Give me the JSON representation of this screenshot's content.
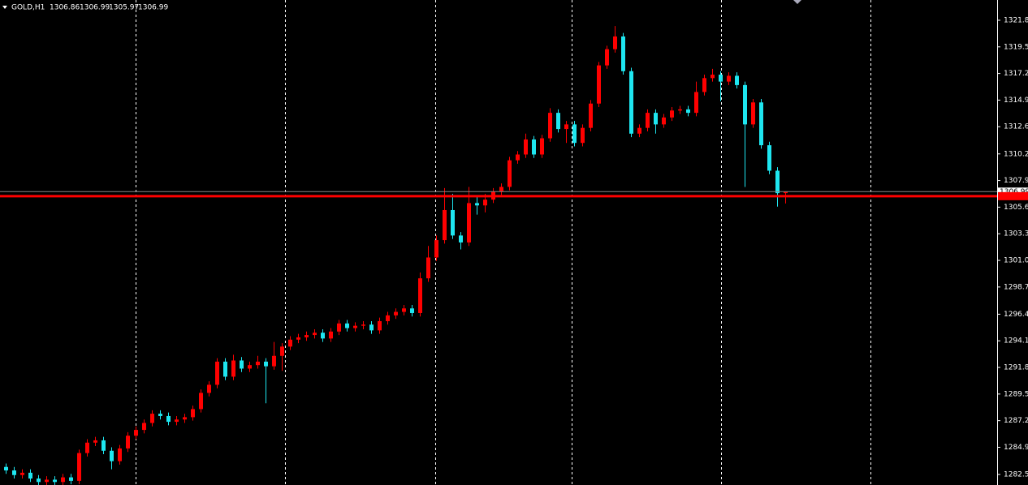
{
  "chart_data": {
    "type": "candlestick",
    "title": "GOLD,H1",
    "up_color": "#ff0000",
    "down_color": "#1ee6f0",
    "ylim": [
      1281.64,
      1323.55
    ],
    "yticks": [
      {
        "value": 1321.8,
        "label": "1321.80"
      },
      {
        "value": 1319.5,
        "label": "1319.50"
      },
      {
        "value": 1317.2,
        "label": "1317.20"
      },
      {
        "value": 1314.9,
        "label": "1314.90"
      },
      {
        "value": 1312.6,
        "label": "1312.60"
      },
      1310.25,
      1307.95,
      1305.65,
      1303.35,
      {
        "value": 1301.05,
        "label": "1301.05"
      },
      1298.75,
      {
        "value": 1296.4,
        "label": "1296.40"
      },
      {
        "value": 1294.1,
        "label": "1294.10"
      },
      {
        "value": 1291.8,
        "label": "1291.80"
      },
      {
        "value": 1289.5,
        "label": "1289.50"
      },
      {
        "value": 1287.2,
        "label": "1287.20"
      },
      {
        "value": 1284.9,
        "label": "1284.90"
      },
      1282.55
    ],
    "hline": 1306.6,
    "hline_color": "#ff0000",
    "open": [
      1283.2,
      1282.9,
      1282.5,
      1282.7,
      1282.2,
      1281.9,
      1282.1,
      1281.9,
      1282.3,
      1282.0,
      1284.4,
      1285.3,
      1285.5,
      1284.6,
      1283.7,
      1284.8,
      1285.9,
      1286.4,
      1287.0,
      1287.8,
      1287.6,
      1287.1,
      1287.3,
      1287.5,
      1288.2,
      1289.6,
      1290.3,
      1292.3,
      1291.0,
      1292.4,
      1291.7,
      1292.0,
      1292.3,
      1291.9,
      1292.8,
      1293.6,
      1294.2,
      1294.4,
      1294.6,
      1294.8,
      1294.3,
      1294.9,
      1295.6,
      1295.2,
      1295.4,
      1295.5,
      1295.0,
      1295.8,
      1296.3,
      1296.6,
      1296.9,
      1296.5,
      1299.5,
      1301.3,
      1302.8,
      1305.4,
      1303.2,
      1302.6,
      1306.0,
      1305.8,
      1306.3,
      1307.0,
      1307.4,
      1309.7,
      1310.2,
      1311.5,
      1310.2,
      1311.6,
      1313.8,
      1312.4,
      1312.8,
      1311.2,
      1312.5,
      1314.6,
      1317.9,
      1319.3,
      1320.4,
      1317.4,
      1312.0,
      1312.5,
      1313.8,
      1312.8,
      1313.4,
      1314.0,
      1314.1,
      1313.8,
      1315.6,
      1316.8,
      1317.1,
      1316.5,
      1317.0,
      1316.2,
      1312.8,
      1314.7,
      1311.0,
      1308.8,
      1306.86
    ],
    "high": [
      1283.5,
      1283.2,
      1283.0,
      1283.0,
      1282.5,
      1282.4,
      1282.4,
      1282.6,
      1282.6,
      1284.7,
      1285.6,
      1285.8,
      1285.8,
      1284.9,
      1285.1,
      1286.2,
      1286.7,
      1287.3,
      1288.1,
      1288.1,
      1287.9,
      1287.6,
      1287.8,
      1288.5,
      1289.9,
      1290.6,
      1292.6,
      1292.6,
      1292.9,
      1292.7,
      1292.3,
      1292.8,
      1292.6,
      1294.0,
      1293.9,
      1294.5,
      1294.7,
      1294.9,
      1295.1,
      1295.1,
      1295.2,
      1295.9,
      1295.9,
      1295.7,
      1295.8,
      1295.8,
      1296.1,
      1296.6,
      1296.9,
      1297.2,
      1297.2,
      1300.0,
      1302.3,
      1303.2,
      1307.3,
      1306.8,
      1303.5,
      1307.4,
      1306.6,
      1306.8,
      1307.3,
      1307.7,
      1310.0,
      1310.5,
      1312.0,
      1311.8,
      1311.9,
      1314.2,
      1314.1,
      1313.1,
      1313.1,
      1312.8,
      1314.9,
      1318.2,
      1319.6,
      1321.3,
      1320.7,
      1317.7,
      1312.8,
      1314.1,
      1314.1,
      1313.7,
      1314.3,
      1314.4,
      1314.4,
      1316.5,
      1317.1,
      1317.6,
      1317.4,
      1317.3,
      1317.3,
      1316.5,
      1315.0,
      1315.0,
      1311.3,
      1309.1,
      1306.99
    ],
    "low": [
      1282.6,
      1282.2,
      1282.2,
      1281.9,
      1281.6,
      1281.6,
      1281.6,
      1281.6,
      1281.7,
      1281.7,
      1284.1,
      1285.0,
      1284.3,
      1283.0,
      1283.4,
      1284.5,
      1285.6,
      1286.1,
      1286.7,
      1287.3,
      1286.8,
      1286.8,
      1287.0,
      1287.2,
      1287.9,
      1289.3,
      1290.0,
      1290.7,
      1290.7,
      1291.4,
      1291.4,
      1291.7,
      1288.7,
      1291.6,
      1291.5,
      1293.3,
      1293.9,
      1294.1,
      1294.3,
      1294.0,
      1294.0,
      1294.6,
      1294.9,
      1294.9,
      1295.1,
      1294.7,
      1294.7,
      1295.5,
      1296.0,
      1296.3,
      1296.2,
      1296.2,
      1299.2,
      1301.0,
      1302.5,
      1302.9,
      1302.0,
      1302.3,
      1305.0,
      1305.2,
      1306.0,
      1306.7,
      1307.1,
      1309.4,
      1309.9,
      1309.9,
      1309.9,
      1311.3,
      1312.1,
      1311.2,
      1310.9,
      1310.9,
      1312.2,
      1314.3,
      1317.6,
      1319.0,
      1317.1,
      1311.7,
      1311.7,
      1312.2,
      1312.0,
      1312.5,
      1313.1,
      1313.7,
      1313.5,
      1313.5,
      1315.3,
      1316.5,
      1314.8,
      1316.2,
      1315.9,
      1307.4,
      1312.5,
      1310.7,
      1308.5,
      1305.7,
      1305.97
    ],
    "close": [
      1282.9,
      1282.5,
      1282.7,
      1282.2,
      1281.9,
      1282.1,
      1281.9,
      1282.3,
      1282.0,
      1284.4,
      1285.3,
      1285.5,
      1284.6,
      1283.7,
      1284.8,
      1285.9,
      1286.4,
      1287.0,
      1287.8,
      1287.6,
      1287.1,
      1287.3,
      1287.5,
      1288.2,
      1289.6,
      1290.3,
      1292.3,
      1291.0,
      1292.4,
      1291.7,
      1292.0,
      1292.3,
      1291.9,
      1292.8,
      1293.6,
      1294.2,
      1294.4,
      1294.6,
      1294.8,
      1294.3,
      1294.9,
      1295.6,
      1295.2,
      1295.4,
      1295.5,
      1295.0,
      1295.8,
      1296.3,
      1296.6,
      1296.9,
      1296.5,
      1299.5,
      1301.3,
      1302.8,
      1305.4,
      1303.2,
      1302.6,
      1306.0,
      1305.8,
      1306.3,
      1307.0,
      1307.4,
      1309.7,
      1310.2,
      1311.5,
      1310.2,
      1311.6,
      1313.8,
      1312.4,
      1312.8,
      1311.2,
      1312.5,
      1314.6,
      1317.9,
      1319.3,
      1320.4,
      1317.4,
      1312.0,
      1312.5,
      1313.8,
      1312.8,
      1313.4,
      1314.0,
      1314.1,
      1313.8,
      1315.6,
      1316.8,
      1317.1,
      1316.5,
      1317.0,
      1316.2,
      1312.8,
      1314.7,
      1311.0,
      1308.8,
      1306.86,
      1306.99
    ]
  }
}
